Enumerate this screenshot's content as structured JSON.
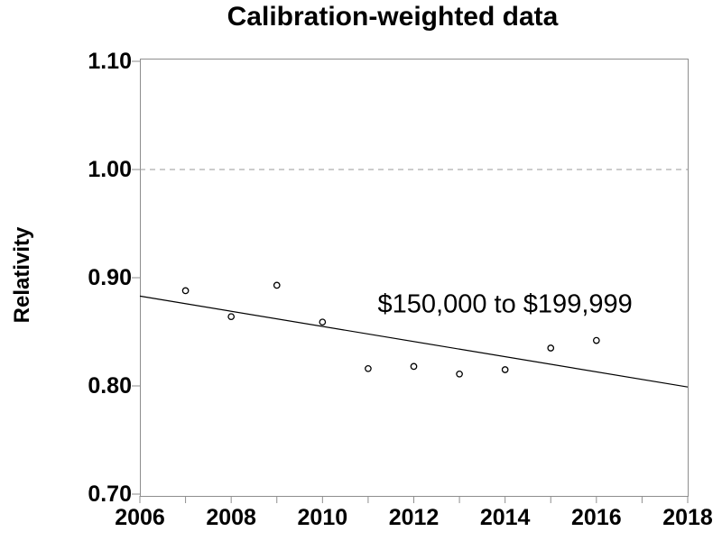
{
  "chart_data": {
    "type": "scatter",
    "title": "Calibration-weighted data",
    "xlabel": "",
    "ylabel": "Relativity",
    "annotation": "$150,000 to $199,999",
    "annotation_pos": {
      "x": 2014,
      "y": 0.875
    },
    "x": [
      2007,
      2008,
      2009,
      2010,
      2011,
      2012,
      2013,
      2014,
      2015,
      2016
    ],
    "y": [
      0.888,
      0.864,
      0.893,
      0.859,
      0.816,
      0.818,
      0.811,
      0.815,
      0.835,
      0.842
    ],
    "trendline": {
      "x1": 2006,
      "y1": 0.883,
      "x2": 2018,
      "y2": 0.799
    },
    "reference_line": {
      "y": 1.0,
      "style": "dashed"
    },
    "xlim": [
      2006,
      2018
    ],
    "ylim": [
      0.7,
      1.1
    ],
    "x_major_ticks": [
      2006,
      2008,
      2010,
      2012,
      2014,
      2016,
      2018
    ],
    "x_tick_labels": [
      "2006",
      "2008",
      "2010",
      "2012",
      "2014",
      "2016",
      "2018"
    ],
    "x_minor_ticks": [
      2007,
      2009,
      2011,
      2013,
      2015,
      2017
    ],
    "y_ticks": [
      0.7,
      0.8,
      0.9,
      1.0,
      1.1
    ],
    "y_tick_labels": [
      "0.70",
      "0.80",
      "0.90",
      "1.00",
      "1.10"
    ],
    "grid": false,
    "legend": "none",
    "colors": {
      "background": "#ffffff",
      "frame": "#8e8e8e",
      "tick": "#8e8e8e",
      "reference": "#999999",
      "trend": "#000000",
      "point_stroke": "#000000",
      "text": "#000000"
    }
  }
}
